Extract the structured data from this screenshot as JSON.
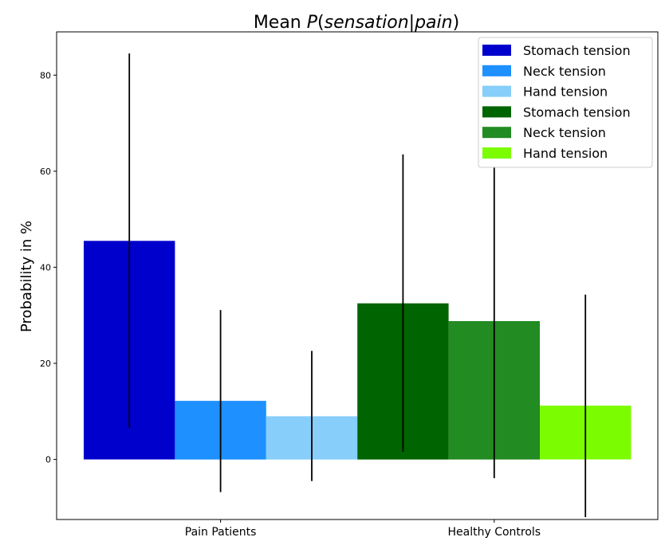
{
  "chart_data": {
    "type": "bar",
    "title_prefix": "Mean ",
    "title_math": "P(sensation|pain)",
    "title_math_parts": [
      "P",
      "(",
      "sensation",
      "|",
      "pain",
      ")"
    ],
    "xlabel": "",
    "ylabel": "Probability in %",
    "categories": [
      "Pain Patients",
      "Healthy Controls"
    ],
    "ylim": [
      -12.5,
      89
    ],
    "yticks": [
      0,
      20,
      40,
      60,
      80
    ],
    "grid": false,
    "legend_position": "top-right",
    "series": [
      {
        "name": "Stomach tension",
        "color": "#0000cd",
        "group": 0,
        "value": 45.5,
        "err_low": 6.5,
        "err_high": 84.5
      },
      {
        "name": "Neck tension",
        "color": "#1e90ff",
        "group": 0,
        "value": 12.2,
        "err_low": -6.8,
        "err_high": 31.1
      },
      {
        "name": "Hand tension",
        "color": "#87cefa",
        "group": 0,
        "value": 9.0,
        "err_low": -4.5,
        "err_high": 22.6
      },
      {
        "name": "Stomach tension",
        "color": "#006400",
        "group": 1,
        "value": 32.5,
        "err_low": 1.6,
        "err_high": 63.5
      },
      {
        "name": "Neck tension",
        "color": "#228b22",
        "group": 1,
        "value": 28.8,
        "err_low": -3.9,
        "err_high": 61.0
      },
      {
        "name": "Hand tension",
        "color": "#7cfc00",
        "group": 1,
        "value": 11.2,
        "err_low": -12.0,
        "err_high": 34.3
      }
    ]
  }
}
